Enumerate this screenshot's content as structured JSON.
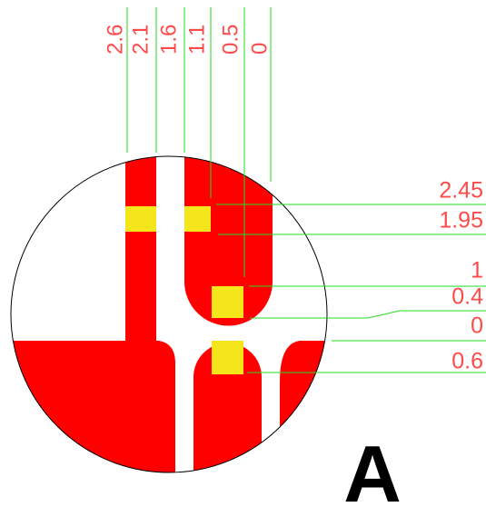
{
  "top_labels": [
    "2.6",
    "2.1",
    "1.6",
    "1.1",
    "0.5",
    "0"
  ],
  "right_labels": [
    "2.45",
    "1.95",
    "1",
    "0.4",
    "0",
    "0.6"
  ],
  "title": "A"
}
